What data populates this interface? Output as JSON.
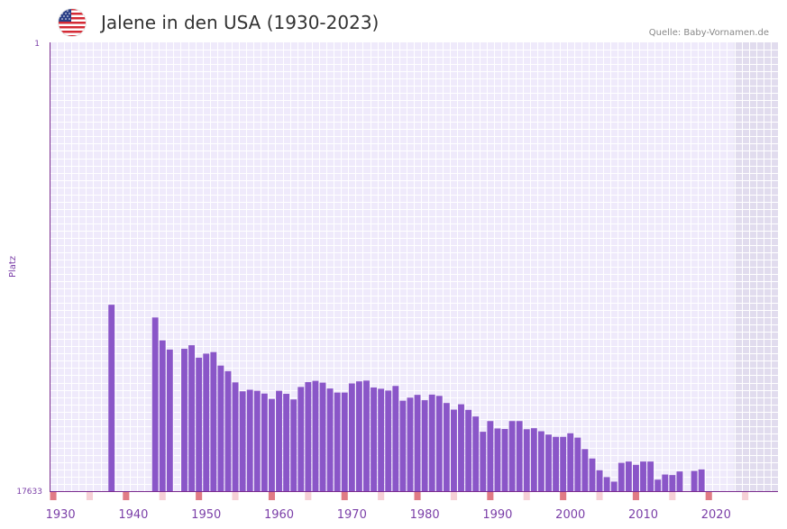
{
  "header": {
    "title": "Jalene in den USA (1930-2023)",
    "source": "Quelle: Baby-Vornamen.de",
    "flag_icon": "us-flag-icon"
  },
  "colors": {
    "bar": "#8a56c8",
    "plot_bg": "#efeafb",
    "grid": "#ffffff",
    "future_bg": "#e1dcee",
    "axis": "#7b2d8e",
    "label": "#7b3fa8",
    "decade_marker": "#e07b85",
    "half_marker": "#f6d0d6"
  },
  "chart_data": {
    "type": "bar",
    "title": "Jalene in den USA (1930-2023)",
    "xlabel": "",
    "ylabel": "Platz",
    "y_axis_reversed": true,
    "ylim": [
      1,
      17633
    ],
    "y_ticks": [
      "1",
      "17633"
    ],
    "x_ticks": [
      1930,
      1940,
      1950,
      1960,
      1970,
      1980,
      1990,
      2000,
      2010,
      2020
    ],
    "x_range": [
      1929,
      2029
    ],
    "shaded_future_from": 2023,
    "years": [
      1937,
      1943,
      1944,
      1945,
      1947,
      1948,
      1949,
      1950,
      1951,
      1952,
      1953,
      1954,
      1955,
      1956,
      1957,
      1958,
      1959,
      1960,
      1961,
      1962,
      1963,
      1964,
      1965,
      1966,
      1967,
      1968,
      1969,
      1970,
      1971,
      1972,
      1973,
      1974,
      1975,
      1976,
      1977,
      1978,
      1979,
      1980,
      1981,
      1982,
      1983,
      1984,
      1985,
      1986,
      1987,
      1988,
      1989,
      1990,
      1991,
      1992,
      1993,
      1994,
      1995,
      1996,
      1997,
      1998,
      1999,
      2000,
      2001,
      2002,
      2003,
      2004,
      2005,
      2006,
      2007,
      2008,
      2009,
      2010,
      2011,
      2012,
      2013,
      2014,
      2015,
      2017,
      2018
    ],
    "values": [
      10310,
      10810,
      11710,
      12070,
      12040,
      11900,
      12390,
      12230,
      12170,
      12700,
      12920,
      13360,
      13710,
      13650,
      13690,
      13800,
      14010,
      13690,
      13810,
      14030,
      13540,
      13350,
      13300,
      13370,
      13600,
      13760,
      13760,
      13400,
      13320,
      13290,
      13560,
      13610,
      13680,
      13500,
      14080,
      13960,
      13850,
      14060,
      13840,
      13890,
      14170,
      14430,
      14220,
      14440,
      14700,
      15300,
      14880,
      15170,
      15190,
      14880,
      14880,
      15200,
      15160,
      15280,
      15410,
      15500,
      15500,
      15360,
      15530,
      15980,
      16350,
      16810,
      17080,
      17260,
      16520,
      16470,
      16600,
      16470,
      16470,
      17180,
      16980,
      17000,
      16860,
      16840,
      16780
    ]
  }
}
